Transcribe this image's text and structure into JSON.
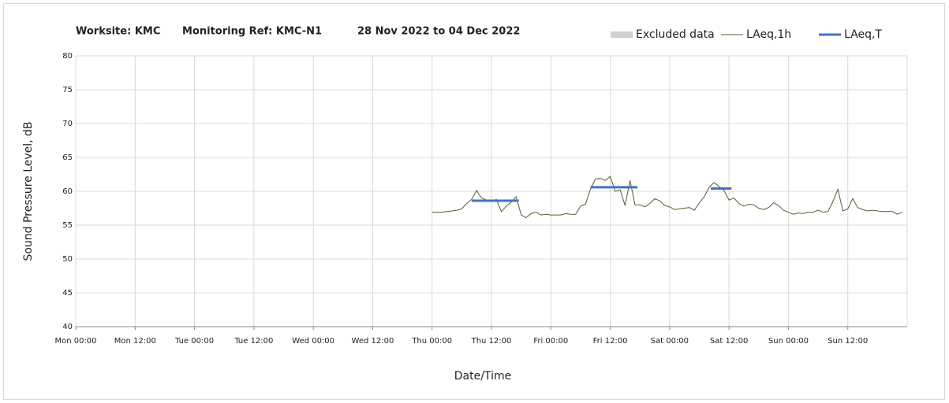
{
  "chart_data": {
    "type": "line",
    "title": [
      "Worksite: KMC",
      "Monitoring Ref: KMC-N1",
      "28 Nov 2022 to 04 Dec 2022"
    ],
    "x_label": "Date/Time",
    "y_label": "Sound Pressure Level, dB",
    "xlim": [
      0,
      168
    ],
    "ylim": [
      40,
      80
    ],
    "xticks": [
      {
        "value": 0,
        "label": "Mon 00:00"
      },
      {
        "value": 12,
        "label": "Mon 12:00"
      },
      {
        "value": 24,
        "label": "Tue 00:00"
      },
      {
        "value": 36,
        "label": "Tue 12:00"
      },
      {
        "value": 48,
        "label": "Wed 00:00"
      },
      {
        "value": 60,
        "label": "Wed 12:00"
      },
      {
        "value": 72,
        "label": "Thu 00:00"
      },
      {
        "value": 84,
        "label": "Thu 12:00"
      },
      {
        "value": 96,
        "label": "Fri 00:00"
      },
      {
        "value": 108,
        "label": "Fri 12:00"
      },
      {
        "value": 120,
        "label": "Sat 00:00"
      },
      {
        "value": 132,
        "label": "Sat 12:00"
      },
      {
        "value": 144,
        "label": "Sun 00:00"
      },
      {
        "value": 156,
        "label": "Sun 12:00"
      }
    ],
    "yticks": [
      40,
      45,
      50,
      55,
      60,
      65,
      70,
      75,
      80
    ],
    "grid": true,
    "legend": "top-right",
    "series": [
      {
        "name": "Excluded data",
        "color": "#d0d0d0",
        "style": "area",
        "x": [],
        "values": []
      },
      {
        "name": "LAeq,1h",
        "color": "#4f6228",
        "style": "thin",
        "x": [
          72,
          73,
          74,
          75,
          76,
          77,
          78,
          79,
          80,
          81,
          82,
          83,
          84,
          85,
          86,
          87,
          88,
          89,
          90,
          91,
          92,
          93,
          94,
          95,
          96,
          97,
          98,
          99,
          100,
          101,
          102,
          103,
          104,
          105,
          106,
          107,
          108,
          109,
          110,
          111,
          112,
          113,
          114,
          115,
          116,
          117,
          118,
          119,
          120,
          121,
          122,
          123,
          124,
          125,
          126,
          127,
          128,
          129,
          130,
          131,
          132,
          133,
          134,
          135,
          136,
          137,
          138,
          139,
          140,
          141,
          142,
          143,
          144,
          145,
          146,
          147,
          148,
          149,
          150,
          151,
          152,
          153,
          154,
          155,
          156,
          157,
          158,
          159,
          160,
          161,
          162,
          163,
          164,
          165,
          166,
          167
        ],
        "values": [
          56.9,
          56.9,
          56.9,
          57.0,
          57.1,
          57.2,
          57.4,
          58.2,
          58.8,
          60.1,
          59.0,
          58.7,
          58.5,
          58.8,
          57.0,
          57.8,
          58.4,
          59.2,
          56.5,
          56.1,
          56.7,
          56.9,
          56.5,
          56.6,
          56.5,
          56.5,
          56.5,
          56.7,
          56.6,
          56.6,
          57.8,
          58.1,
          60.3,
          61.8,
          61.9,
          61.6,
          62.2,
          60.0,
          60.2,
          57.9,
          61.6,
          58.0,
          58.0,
          57.7,
          58.2,
          58.9,
          58.6,
          57.9,
          57.7,
          57.3,
          57.4,
          57.5,
          57.6,
          57.2,
          58.3,
          59.2,
          60.6,
          61.3,
          60.7,
          60.1,
          58.7,
          59.0,
          58.2,
          57.8,
          58.1,
          58.0,
          57.5,
          57.3,
          57.6,
          58.3,
          57.9,
          57.2,
          56.9,
          56.6,
          56.8,
          56.7,
          56.9,
          56.9,
          57.2,
          56.9,
          57.0,
          58.5,
          60.3,
          57.1,
          57.4,
          58.9,
          57.6,
          57.3,
          57.1,
          57.2,
          57.1,
          57.0,
          57.0,
          57.0,
          56.6,
          56.9
        ]
      },
      {
        "name": "LAeq,T",
        "color": "#4472c4",
        "style": "thick",
        "x": [
          80,
          89.5,
          null,
          104,
          113.5,
          null,
          128.3,
          132.5
        ],
        "values": [
          58.6,
          58.6,
          null,
          60.6,
          60.6,
          null,
          60.4,
          60.4
        ]
      }
    ]
  }
}
